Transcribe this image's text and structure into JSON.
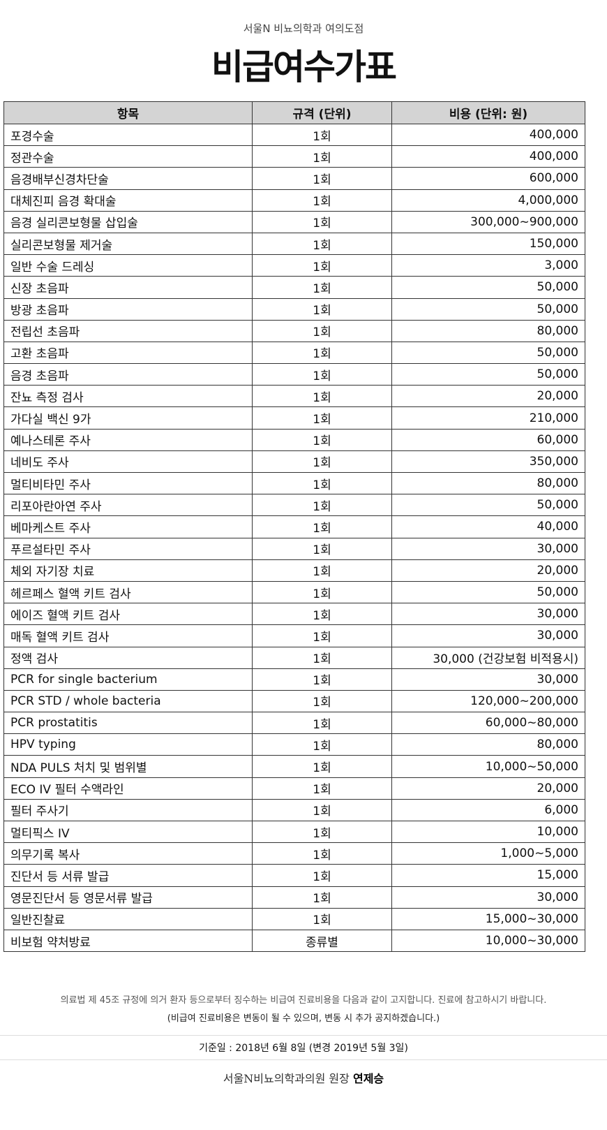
{
  "header": {
    "subtitle": "서울N 비뇨의학과 여의도점",
    "title": "비급여수가표"
  },
  "table": {
    "columns": [
      "항목",
      "규격 (단위)",
      "비용 (단위: 원)"
    ],
    "rows": [
      [
        "포경수술",
        "1회",
        "400,000"
      ],
      [
        "정관수술",
        "1회",
        "400,000"
      ],
      [
        "음경배부신경차단술",
        "1회",
        "600,000"
      ],
      [
        "대체진피 음경 확대술",
        "1회",
        "4,000,000"
      ],
      [
        "음경 실리콘보형물 삽입술",
        "1회",
        "300,000~900,000"
      ],
      [
        "실리콘보형물 제거술",
        "1회",
        "150,000"
      ],
      [
        "일반 수술 드레싱",
        "1회",
        "3,000"
      ],
      [
        "신장 초음파",
        "1회",
        "50,000"
      ],
      [
        "방광 초음파",
        "1회",
        "50,000"
      ],
      [
        "전립선 초음파",
        "1회",
        "80,000"
      ],
      [
        "고환 초음파",
        "1회",
        "50,000"
      ],
      [
        "음경 초음파",
        "1회",
        "50,000"
      ],
      [
        "잔뇨 측정 검사",
        "1회",
        "20,000"
      ],
      [
        "가다실 백신 9가",
        "1회",
        "210,000"
      ],
      [
        "예나스테론 주사",
        "1회",
        "60,000"
      ],
      [
        "네비도 주사",
        "1회",
        "350,000"
      ],
      [
        "멀티비타민 주사",
        "1회",
        "80,000"
      ],
      [
        "리포아란아연 주사",
        "1회",
        "50,000"
      ],
      [
        "베마케스트 주사",
        "1회",
        "40,000"
      ],
      [
        "푸르설타민 주사",
        "1회",
        "30,000"
      ],
      [
        "체외 자기장 치료",
        "1회",
        "20,000"
      ],
      [
        "헤르페스 혈액 키트 검사",
        "1회",
        "50,000"
      ],
      [
        "에이즈 혈액 키트 검사",
        "1회",
        "30,000"
      ],
      [
        "매독 혈액 키트 검사",
        "1회",
        "30,000"
      ],
      [
        "정액 검사",
        "1회",
        "30,000 (건강보험 비적용시)"
      ],
      [
        "PCR for single bacterium",
        "1회",
        "30,000"
      ],
      [
        "PCR STD / whole bacteria",
        "1회",
        "120,000~200,000"
      ],
      [
        "PCR prostatitis",
        "1회",
        "60,000~80,000"
      ],
      [
        "HPV typing",
        "1회",
        "80,000"
      ],
      [
        "NDA PULS 처치 및 범위별",
        "1회",
        "10,000~50,000"
      ],
      [
        "ECO IV 필터 수액라인",
        "1회",
        "20,000"
      ],
      [
        "필터 주사기",
        "1회",
        "6,000"
      ],
      [
        "멀티픽스 IV",
        "1회",
        "10,000"
      ],
      [
        "의무기록 복사",
        "1회",
        "1,000~5,000"
      ],
      [
        "진단서 등 서류 발급",
        "1회",
        "15,000"
      ],
      [
        "영문진단서 등 영문서류 발급",
        "1회",
        "30,000"
      ],
      [
        "일반진찰료",
        "1회",
        "15,000~30,000"
      ],
      [
        "비보험 약처방료",
        "종류별",
        "10,000~30,000"
      ]
    ]
  },
  "footer": {
    "notice": "의료법 제 45조 규정에 의거 환자 등으로부터 징수하는 비급여 진료비용을 다음과 같이 고지합니다. 진료에 참고하시기 바랍니다.",
    "notice_sub": "(비급여 진료비용은 변동이 될 수 있으며, 변동 시 추가 공지하겠습니다.)",
    "date": "기준일 : 2018년 6월 8일 (변경 2019년 5월 3일)",
    "signer_prefix": "서울N비뇨의학과의원 원장",
    "signer_name": "연제승"
  }
}
